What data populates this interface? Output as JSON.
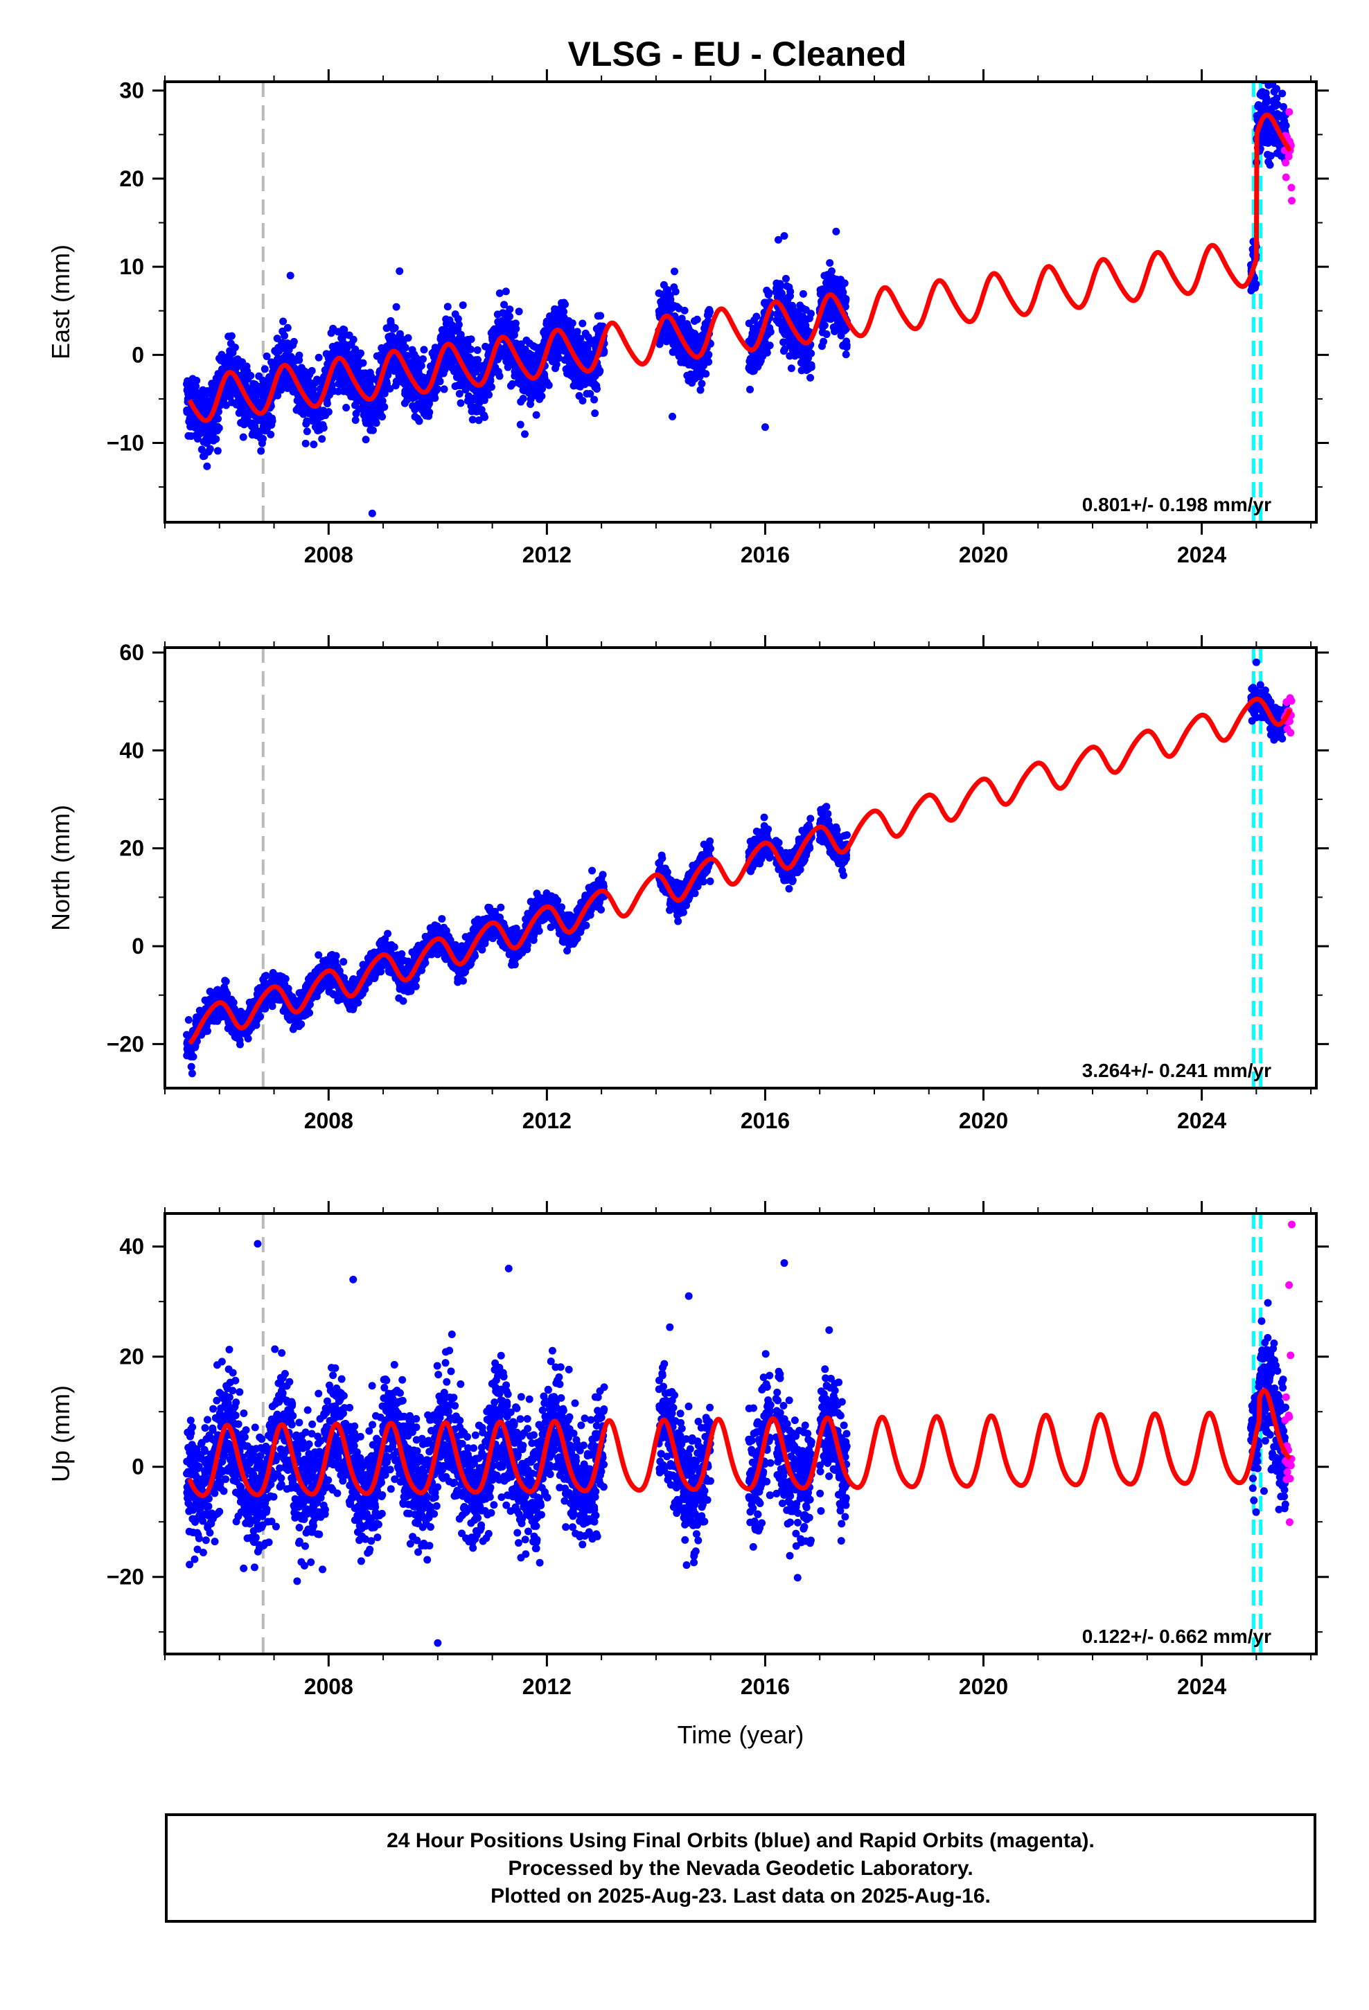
{
  "title": "VLSG  - EU - Cleaned",
  "colors": {
    "final_orbits": "#0000ff",
    "rapid_orbits": "#ff00ff",
    "model": "#ff0000",
    "equipment_change": "#bbbbbb",
    "other_event": "#00ffff"
  },
  "footer": {
    "line1": "24 Hour Positions Using Final Orbits (blue) and Rapid Orbits (magenta).",
    "line2": "Processed by the Nevada Geodetic Laboratory.",
    "line3": "Plotted on 2025-Aug-23. Last data on 2025-Aug-16."
  },
  "chart_data": [
    {
      "type": "scatter",
      "ylabel": "East (mm)",
      "rate_label": "0.801+/- 0.198 mm/yr",
      "xlim": [
        2005.0,
        2026.1
      ],
      "ylim": [
        -19,
        31
      ],
      "xticks": [
        2008,
        2012,
        2016,
        2020,
        2024
      ],
      "yticks": [
        -10,
        0,
        10,
        20,
        30
      ],
      "ytick_labels": [
        "−10",
        "0",
        "10",
        "20",
        "30"
      ],
      "event_lines": [
        {
          "x": 2006.8,
          "kind": "equipment_change"
        },
        {
          "x": 2024.95,
          "kind": "other_event"
        },
        {
          "x": 2025.08,
          "kind": "other_event"
        }
      ],
      "data_segments": [
        [
          2005.4,
          2013.05
        ],
        [
          2014.05,
          2015.0
        ],
        [
          2015.7,
          2016.1
        ],
        [
          2016.2,
          2016.85
        ],
        [
          2017.0,
          2017.5
        ],
        [
          2024.9,
          2025.55
        ]
      ],
      "rapid_segment": [
        2025.52,
        2025.65
      ],
      "model": {
        "ref_year": 2012.0,
        "offset": 0.0,
        "rate": 0.801,
        "amp1": 2.5,
        "phase1": 0.2,
        "amp2": 0.3,
        "phase2": 0.0,
        "noise": 1.8
      },
      "jumps": [
        {
          "x": 2025.0,
          "dy": 14.0
        }
      ],
      "outliers": [
        {
          "x": 2008.8,
          "y": -18.0
        },
        {
          "x": 2007.3,
          "y": 9.0
        },
        {
          "x": 2009.3,
          "y": 9.5
        },
        {
          "x": 2017.3,
          "y": 14.0
        },
        {
          "x": 2016.35,
          "y": 13.5
        },
        {
          "x": 2014.3,
          "y": -7.0
        },
        {
          "x": 2016.0,
          "y": -8.2
        },
        {
          "x": 2005.8,
          "y": -11.0
        },
        {
          "x": 2025.65,
          "y": 17.5
        }
      ]
    },
    {
      "type": "scatter",
      "ylabel": "North (mm)",
      "rate_label": "3.264+/- 0.241 mm/yr",
      "xlim": [
        2005.0,
        2026.1
      ],
      "ylim": [
        -29,
        61
      ],
      "xticks": [
        2008,
        2012,
        2016,
        2020,
        2024
      ],
      "yticks": [
        -20,
        0,
        20,
        40,
        60
      ],
      "ytick_labels": [
        "−20",
        "0",
        "20",
        "40",
        "60"
      ],
      "event_lines": [
        {
          "x": 2006.8,
          "kind": "equipment_change"
        },
        {
          "x": 2024.95,
          "kind": "other_event"
        },
        {
          "x": 2025.08,
          "kind": "other_event"
        }
      ],
      "data_segments": [
        [
          2005.4,
          2013.05
        ],
        [
          2014.05,
          2015.0
        ],
        [
          2015.7,
          2016.1
        ],
        [
          2016.2,
          2016.85
        ],
        [
          2017.0,
          2017.5
        ],
        [
          2024.9,
          2025.55
        ]
      ],
      "rapid_segment": [
        2025.52,
        2025.65
      ],
      "model": {
        "ref_year": 2012.0,
        "offset": 5.0,
        "rate": 3.264,
        "amp1": 3.2,
        "phase1": 1.9,
        "amp2": 0.4,
        "phase2": 0.0,
        "noise": 1.6
      },
      "jumps": [],
      "outliers": [
        {
          "x": 2025.0,
          "y": 58.0
        },
        {
          "x": 2005.5,
          "y": -26.0
        }
      ]
    },
    {
      "type": "scatter",
      "xlabel": "Time (year)",
      "ylabel": "Up (mm)",
      "rate_label": "0.122+/- 0.662 mm/yr",
      "xlim": [
        2005.0,
        2026.1
      ],
      "ylim": [
        -34,
        46
      ],
      "xticks": [
        2008,
        2012,
        2016,
        2020,
        2024
      ],
      "yticks": [
        -20,
        0,
        20,
        40
      ],
      "ytick_labels": [
        "−20",
        "0",
        "20",
        "40"
      ],
      "event_lines": [
        {
          "x": 2006.8,
          "kind": "equipment_change"
        },
        {
          "x": 2024.95,
          "kind": "other_event"
        },
        {
          "x": 2025.08,
          "kind": "other_event"
        }
      ],
      "data_segments": [
        [
          2005.4,
          2013.05
        ],
        [
          2014.05,
          2015.0
        ],
        [
          2015.7,
          2016.1
        ],
        [
          2016.2,
          2016.85
        ],
        [
          2017.0,
          2017.5
        ],
        [
          2024.9,
          2025.55
        ]
      ],
      "rapid_segment": [
        2025.52,
        2025.65
      ],
      "model": {
        "ref_year": 2012.0,
        "offset": 1.0,
        "rate": 0.122,
        "amp1": 6.3,
        "phase1": 0.6,
        "amp2": 1.0,
        "phase2": 0.0,
        "noise": 5.5
      },
      "jumps": [
        {
          "x": 2025.05,
          "dy": 4.0
        }
      ],
      "outliers": [
        {
          "x": 2006.7,
          "y": 40.5
        },
        {
          "x": 2008.45,
          "y": 34.0
        },
        {
          "x": 2011.3,
          "y": 36.0
        },
        {
          "x": 2016.35,
          "y": 37.0
        },
        {
          "x": 2010.0,
          "y": -32.0
        },
        {
          "x": 2014.6,
          "y": 31.0
        },
        {
          "x": 2025.65,
          "y": 44.0
        },
        {
          "x": 2025.6,
          "y": 33.0
        }
      ]
    }
  ]
}
